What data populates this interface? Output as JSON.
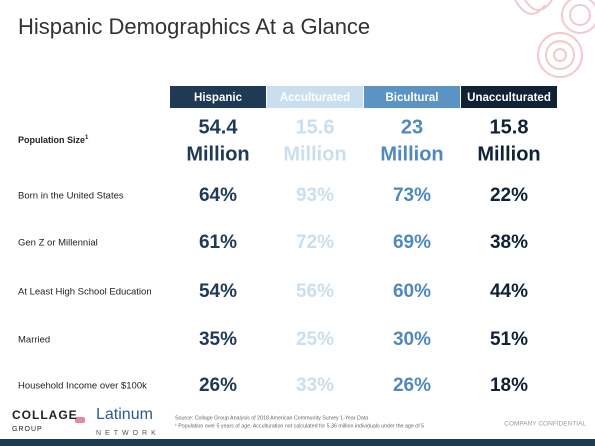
{
  "title": "Hispanic Demographics At a Glance",
  "table": {
    "columns": [
      "Hispanic",
      "Acculturated",
      "Bicultural",
      "Unacculturated"
    ],
    "population": {
      "label": "Population Size",
      "footnote_mark": "1",
      "cells": [
        {
          "number": "54.4",
          "unit": "Million"
        },
        {
          "number": "15.6",
          "unit": "Million"
        },
        {
          "number": "23",
          "unit": "Million"
        },
        {
          "number": "15.8",
          "unit": "Million"
        }
      ]
    },
    "rows": [
      {
        "label": "Born in the United States",
        "cells": [
          "64%",
          "93%",
          "73%",
          "22%"
        ]
      },
      {
        "label": "Gen Z or Millennial",
        "cells": [
          "61%",
          "72%",
          "69%",
          "38%"
        ]
      },
      {
        "label": "At Least High School Education",
        "cells": [
          "54%",
          "56%",
          "60%",
          "44%"
        ]
      },
      {
        "label": "Married",
        "cells": [
          "35%",
          "25%",
          "30%",
          "51%"
        ]
      },
      {
        "label": "Household Income over $100k",
        "cells": [
          "26%",
          "33%",
          "26%",
          "18%"
        ]
      }
    ]
  },
  "footer": {
    "logo_collage": "COLLAGE",
    "logo_group": "GROUP",
    "logo_latinum": "Latinum",
    "logo_network": "NETWORK",
    "source": "Source: Collage Group Analysis of 2018 American Community Survey 1-Year Data",
    "note": "¹ Population over 5 years of age. Acculturation not calculated for 5.36 million individuals under the age of 5",
    "confidential": "COMPANY CONFIDENTIAL"
  }
}
